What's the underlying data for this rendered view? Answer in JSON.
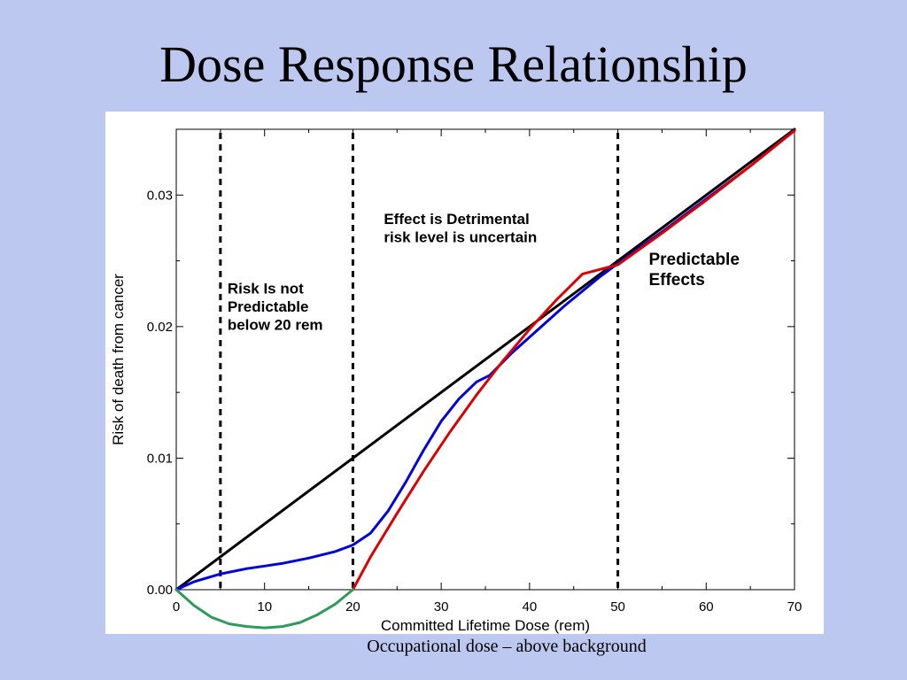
{
  "slide": {
    "title": "Dose Response Relationship",
    "caption": "Occupational dose – above background"
  },
  "chart_data": {
    "type": "line",
    "title": "",
    "xlabel": "Committed Lifetime Dose (rem)",
    "ylabel": "Risk of death from cancer",
    "xlim": [
      0,
      70
    ],
    "ylim": [
      0,
      0.035
    ],
    "x_ticks": [
      0,
      10,
      20,
      30,
      40,
      50,
      60,
      70
    ],
    "x_tick_labels": [
      "0",
      "10",
      "20",
      "30",
      "40",
      "50",
      "60",
      "70"
    ],
    "y_ticks": [
      0,
      0.01,
      0.02,
      0.03
    ],
    "y_tick_labels": [
      "0.00",
      "0.01",
      "0.02",
      "0.03"
    ],
    "grid": false,
    "vlines": [
      5,
      20,
      50
    ],
    "series": [
      {
        "color": "#000000",
        "x": [
          0,
          70
        ],
        "y": [
          0,
          0.035
        ]
      },
      {
        "color": "#0000dd",
        "x": [
          0,
          2,
          5,
          8,
          10,
          12,
          15,
          18,
          20,
          22,
          24,
          26,
          28,
          30,
          32,
          34,
          35.5,
          38,
          40,
          44,
          48,
          50,
          55,
          60,
          65,
          70
        ],
        "y": [
          0,
          0.0006,
          0.0012,
          0.0016,
          0.0018,
          0.002,
          0.0024,
          0.0029,
          0.0034,
          0.0043,
          0.006,
          0.0082,
          0.0106,
          0.0128,
          0.0145,
          0.0158,
          0.0163,
          0.018,
          0.0192,
          0.0216,
          0.0238,
          0.0248,
          0.0272,
          0.0297,
          0.0322,
          0.0349
        ]
      },
      {
        "color": "#dd0000",
        "x": [
          20,
          22,
          25,
          28,
          31,
          34,
          37,
          40,
          43,
          46,
          50,
          55,
          60,
          65,
          70
        ],
        "y": [
          0,
          0.0025,
          0.0058,
          0.009,
          0.012,
          0.0148,
          0.0174,
          0.0198,
          0.022,
          0.024,
          0.0247,
          0.0271,
          0.0296,
          0.0322,
          0.0349
        ]
      },
      {
        "color": "#2e9b5a",
        "x": [
          0,
          2,
          4,
          6,
          8,
          10,
          12,
          14,
          16,
          18,
          20
        ],
        "y": [
          0,
          -0.0012,
          -0.0021,
          -0.0026,
          -0.0028,
          -0.0029,
          -0.0028,
          -0.0025,
          -0.0019,
          -0.0011,
          0
        ]
      }
    ],
    "annotations": [
      {
        "lines": [
          "Risk Is not",
          "Predictable",
          "below 20 rem"
        ],
        "x": 5.8,
        "y": 0.0225,
        "size": 17
      },
      {
        "lines": [
          "Effect is Detrimental",
          "risk level is uncertain"
        ],
        "x": 23.5,
        "y": 0.0278,
        "size": 17
      },
      {
        "lines": [
          "Predictable",
          "Effects"
        ],
        "x": 53.5,
        "y": 0.0247,
        "size": 19
      }
    ]
  }
}
